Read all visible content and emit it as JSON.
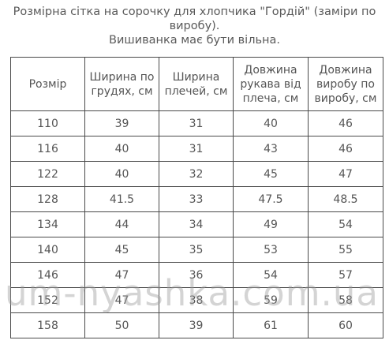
{
  "title": {
    "line1": "Розмірна сітка на сорочку для хлопчика \"Гордій\" (заміри по",
    "line2": "виробу).",
    "line3": "Вишиванка має бути вільна."
  },
  "table": {
    "headers": [
      "Розмір",
      "Ширина по грудях, см",
      "Ширина плечей, см",
      "Довжина рукава від плеча, см",
      "Довжина виробу по виробу, см"
    ],
    "rows": [
      [
        "110",
        "39",
        "31",
        "40",
        "46"
      ],
      [
        "116",
        "40",
        "31",
        "43",
        "46"
      ],
      [
        "122",
        "40",
        "32",
        "45",
        "47"
      ],
      [
        "128",
        "41.5",
        "33",
        "47.5",
        "48.5"
      ],
      [
        "134",
        "44",
        "34",
        "49",
        "54"
      ],
      [
        "140",
        "45",
        "35",
        "53",
        "55"
      ],
      [
        "146",
        "47",
        "36",
        "54",
        "57"
      ],
      [
        "152",
        "47",
        "38",
        "59",
        "58"
      ],
      [
        "158",
        "50",
        "39",
        "61",
        "60"
      ]
    ]
  },
  "watermark": "um-nyashka.com.ua"
}
